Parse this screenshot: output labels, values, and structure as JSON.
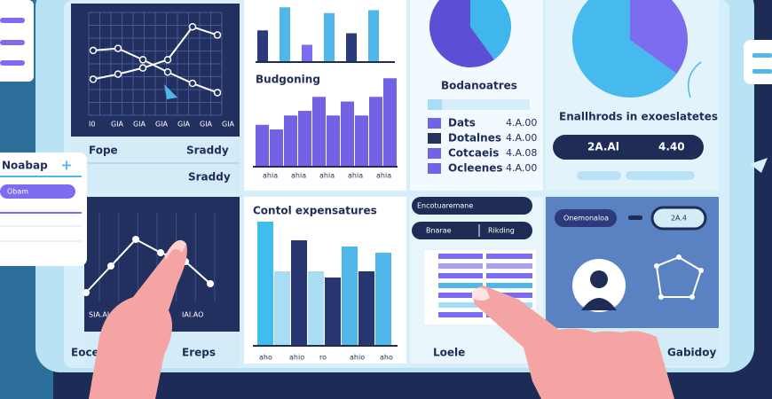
{
  "left_card": {
    "title": "Noabap",
    "button": "+",
    "field": "Obam"
  },
  "panel_trend": {
    "type": "line",
    "ylim": [
      0,
      100
    ],
    "x_labels": [
      "I0",
      "GIA",
      "GIA",
      "GIA",
      "GIA",
      "GIA",
      "GIA"
    ],
    "series": [
      {
        "color": "#ffffff",
        "values": [
          63,
          65,
          54,
          42,
          31,
          22
        ]
      },
      {
        "color": "#ffffff",
        "values": [
          35,
          40,
          46,
          54,
          86,
          78
        ]
      }
    ],
    "footer": [
      "Fope",
      "Sraddy"
    ]
  },
  "panel_budget": {
    "type": "bar",
    "ylim": [
      0,
      100
    ],
    "top_bars": {
      "values": [
        55,
        95,
        30,
        85,
        50,
        90
      ],
      "colors": [
        "#2a3a7a",
        "#4fb8e8",
        "#7b6cf0",
        "#4fb8e8",
        "#2a3a7a",
        "#4fb8e8"
      ]
    },
    "title": "Budgoning",
    "bars": {
      "values": [
        45,
        40,
        55,
        60,
        75,
        55,
        70,
        55,
        75,
        95
      ],
      "color": "#7263e6"
    },
    "x_labels": [
      "ahia",
      "ahia",
      "ahia",
      "ahia",
      "ahia"
    ]
  },
  "panel_table": {
    "pie": {
      "values": [
        40,
        60
      ],
      "colors": [
        "#3fb6ec",
        "#5b4fd6"
      ]
    },
    "title": "Bodanoatres",
    "rows": [
      {
        "label": "Dats",
        "value": "4.A.00",
        "color": "#7263e6"
      },
      {
        "label": "Dotalnes",
        "value": "4.A.00",
        "color": "#23325e"
      },
      {
        "label": "Cotcaeis",
        "value": "4.A.08",
        "color": "#7263e6"
      },
      {
        "label": "Ocleenes",
        "value": "4.A.00",
        "color": "#7263e6"
      }
    ]
  },
  "panel_share": {
    "pie": {
      "values": [
        35,
        65
      ],
      "colors": [
        "#7b6cf0",
        "#46b9ef"
      ]
    },
    "title": "Enallhrods in exoeslatetes",
    "pills": [
      "2A.Al",
      "4.40"
    ]
  },
  "panel_line2": {
    "type": "line",
    "ylim": [
      0,
      100
    ],
    "series": [
      {
        "color": "#ffffff",
        "values": [
          10,
          40,
          70,
          55,
          45,
          20
        ]
      }
    ],
    "labels": [
      "SIA.AI",
      "IAI.AO"
    ],
    "footer": [
      "Eoce",
      "Ereps"
    ]
  },
  "panel_expenses": {
    "type": "bar",
    "ylim": [
      0,
      100
    ],
    "title": "Contol expensatures",
    "bars": {
      "values": [
        100,
        60,
        85,
        60,
        55,
        80,
        60,
        75
      ],
      "colors": [
        "#3fbdec",
        "#a9dcf5",
        "#27366e",
        "#a9dcf5",
        "#27366e",
        "#4fb8e8",
        "#27366e",
        "#4fb8e8"
      ]
    },
    "x_labels": [
      "aho",
      "ahio",
      "ro",
      "ahio",
      "aho"
    ]
  },
  "panel_list": {
    "header": "Encotuaremane",
    "tabs": [
      "Bnarae",
      "Rikding"
    ],
    "footer": "Loele"
  },
  "panel_profile": {
    "pills": [
      "Onemonaloa",
      "2A.4"
    ],
    "footer": "Gabidoy"
  }
}
